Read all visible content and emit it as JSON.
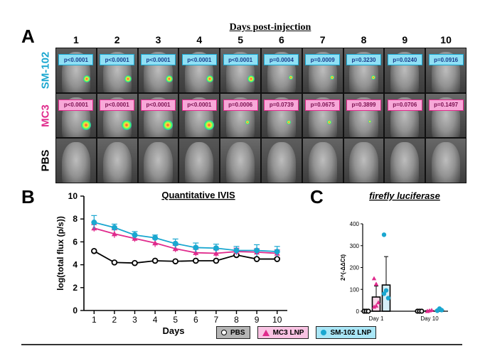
{
  "panel_labels": {
    "a": "A",
    "b": "B",
    "c": "C"
  },
  "imaging": {
    "title": "Days post-injection",
    "days": [
      "1",
      "2",
      "3",
      "4",
      "5",
      "6",
      "7",
      "8",
      "9",
      "10"
    ],
    "rows": [
      {
        "label": "SM-102",
        "color": "#1aa7d0",
        "pvalues": [
          "p<0.0001",
          "p<0.0001",
          "p<0.0001",
          "p<0.0001",
          "p<0.0001",
          "p=0.0004",
          "p=0.0009",
          "p=0.3230",
          "p=0.0240",
          "p=0.0916"
        ]
      },
      {
        "label": "MC3",
        "color": "#e02a8c",
        "pvalues": [
          "p<0.0001",
          "p<0.0001",
          "p<0.0001",
          "p<0.0001",
          "p=0.0006",
          "p=0.0739",
          "p=0.0675",
          "p=0.3899",
          "p=0.0706",
          "p=0.1497"
        ]
      },
      {
        "label": "PBS",
        "color": "#000000",
        "pvalues": []
      }
    ]
  },
  "chart_data": [
    {
      "type": "line",
      "title": "Quantitative IVIS",
      "xlabel": "Days",
      "ylabel": "log(total flux (p/s))",
      "x": [
        1,
        2,
        3,
        4,
        5,
        6,
        7,
        8,
        9,
        10
      ],
      "xlim": [
        0.5,
        10.5
      ],
      "ylim": [
        0,
        10
      ],
      "yticks": [
        0,
        2,
        4,
        6,
        8,
        10
      ],
      "series": [
        {
          "name": "PBS",
          "color": "#000000",
          "marker": "circle-open",
          "values": [
            5.2,
            4.2,
            4.15,
            4.35,
            4.3,
            4.35,
            4.35,
            4.85,
            4.5,
            4.5
          ],
          "errors": [
            0.05,
            0.05,
            0.05,
            0.05,
            0.05,
            0.05,
            0.05,
            0.1,
            0.1,
            0.1
          ]
        },
        {
          "name": "MC3 LNP",
          "color": "#e02a8c",
          "marker": "triangle",
          "values": [
            7.2,
            6.7,
            6.3,
            5.9,
            5.4,
            5.05,
            5.0,
            5.15,
            5.1,
            5.0
          ],
          "errors": [
            0.3,
            0.35,
            0.3,
            0.35,
            0.3,
            0.3,
            0.3,
            0.3,
            0.3,
            0.3
          ]
        },
        {
          "name": "SM-102 LNP",
          "color": "#1aa7d0",
          "marker": "circle",
          "values": [
            7.7,
            7.25,
            6.6,
            6.35,
            5.85,
            5.5,
            5.45,
            5.25,
            5.25,
            5.15
          ],
          "errors": [
            0.6,
            0.3,
            0.3,
            0.25,
            0.4,
            0.4,
            0.35,
            0.35,
            0.5,
            0.45
          ]
        }
      ]
    },
    {
      "type": "bar",
      "title": "firefly luciferase",
      "ylabel": "2^(-ΔΔCt)",
      "categories": [
        "Day 1",
        "Day 10"
      ],
      "ylim": [
        0,
        400
      ],
      "yticks": [
        0,
        100,
        200,
        300,
        400
      ],
      "series": [
        {
          "name": "PBS",
          "color": "#000000",
          "values": [
            1,
            1
          ],
          "points": [
            [
              0,
              0,
              0
            ],
            [
              0,
              0,
              0
            ]
          ]
        },
        {
          "name": "MC3 LNP",
          "color": "#e02a8c",
          "values": [
            65,
            2
          ],
          "errors": [
            50,
            2
          ],
          "points": [
            [
              150,
              125,
              40,
              20,
              25
            ],
            [
              0,
              3,
              5,
              1
            ]
          ]
        },
        {
          "name": "SM-102 LNP",
          "color": "#1aa7d0",
          "values": [
            120,
            5
          ],
          "errors": [
            130,
            6
          ],
          "points": [
            [
              350,
              95,
              60,
              80
            ],
            [
              2,
              12,
              5,
              3
            ]
          ]
        }
      ]
    }
  ],
  "legend": {
    "items": [
      {
        "label": "PBS",
        "color": "#000000",
        "bg": "#b5b5b5",
        "marker": "circle-open"
      },
      {
        "label": "MC3 LNP",
        "color": "#e02a8c",
        "bg": "#f9c3e3",
        "marker": "triangle"
      },
      {
        "label": "SM-102 LNP",
        "color": "#1aa7d0",
        "bg": "#a9e6f6",
        "marker": "circle"
      }
    ]
  }
}
